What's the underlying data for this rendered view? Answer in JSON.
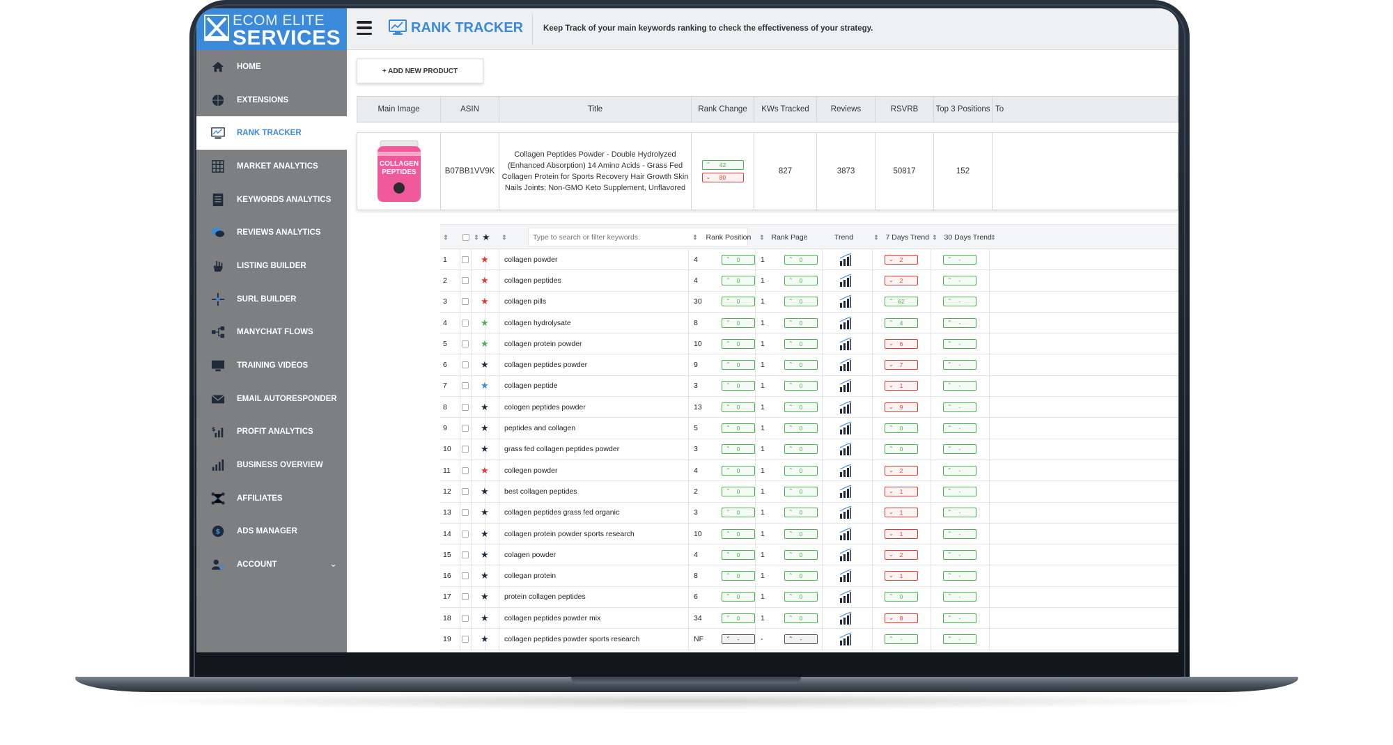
{
  "brand": {
    "line1": "ECOM ELITE",
    "line2": "SERVICES",
    "color": "#3b8ad9"
  },
  "sidebar": {
    "items": [
      {
        "label": "HOME",
        "icon": "home-icon",
        "active": false
      },
      {
        "label": "EXTENSIONS",
        "icon": "globe-icon",
        "active": false
      },
      {
        "label": "RANK TRACKER",
        "icon": "monitor-chart-icon",
        "active": true
      },
      {
        "label": "MARKET ANALYTICS",
        "icon": "grid-icon",
        "active": false
      },
      {
        "label": "KEYWORDS ANALYTICS",
        "icon": "checklist-icon",
        "active": false
      },
      {
        "label": "REVIEWS ANALYTICS",
        "icon": "chat-bubbles-icon",
        "active": false
      },
      {
        "label": "LISTING BUILDER",
        "icon": "hand-icon",
        "active": false
      },
      {
        "label": "SURL BUILDER",
        "icon": "crosshair-icon",
        "active": false
      },
      {
        "label": "MANYCHAT FLOWS",
        "icon": "flow-icon",
        "active": false
      },
      {
        "label": "TRAINING VIDEOS",
        "icon": "monitor-icon",
        "active": false
      },
      {
        "label": "EMAIL AUTORESPONDER",
        "icon": "envelope-icon",
        "active": false
      },
      {
        "label": "PROFIT ANALYTICS",
        "icon": "dollar-bars-icon",
        "active": false
      },
      {
        "label": "BUSINESS OVERVIEW",
        "icon": "bar-chart-icon",
        "active": false
      },
      {
        "label": "AFFILIATES",
        "icon": "network-icon",
        "active": false
      },
      {
        "label": "ADS MANAGER",
        "icon": "dollar-coin-icon",
        "active": false
      },
      {
        "label": "ACCOUNT",
        "icon": "user-gear-icon",
        "active": false,
        "chevron": "chevron-down-icon"
      }
    ]
  },
  "header": {
    "title": "RANK TRACKER",
    "subtitle": "Keep Track of your main keywords ranking to check the effectiveness of your strategy."
  },
  "content": {
    "add_button": "+ ADD NEW PRODUCT",
    "product_columns": [
      "Main Image",
      "ASIN",
      "Title",
      "Rank Change",
      "KWs Tracked",
      "Reviews",
      "RSVRB",
      "Top 3 Positions",
      "To"
    ],
    "product": {
      "image_text_top": "COLLAGEN",
      "image_text_bottom": "PEPTIDES",
      "asin": "B07BB1VV9K",
      "title": "Collagen Peptides Powder - Double Hydrolyzed (Enhanced Absorption) 14 Amino Acids - Grass Fed Collagen Protein for Sports Recovery Hair Growth Skin Nails Joints; Non-GMO Keto Supplement, Unflavored",
      "rank_up": "42",
      "rank_down": "80",
      "kws_tracked": "827",
      "reviews": "3873",
      "rsvrb": "50817",
      "top3": "152"
    },
    "keyword_columns": {
      "search_placeholder": "Type to search or filter keywords.",
      "rank_position": "Rank Position",
      "rank_page": "Rank Page",
      "trend": "Trend",
      "days7": "7 Days Trend",
      "days30": "30 Days Trend"
    },
    "keywords": [
      {
        "n": "1",
        "star": "red",
        "kw": "collagen powder",
        "pos": "4",
        "pos_ch": "0",
        "pos_st": "g",
        "page": "1",
        "page_ch": "0",
        "page_st": "g",
        "d7": "2",
        "d7_st": "r",
        "d30": "-",
        "d30_st": "g"
      },
      {
        "n": "2",
        "star": "red",
        "kw": "collagen peptides",
        "pos": "4",
        "pos_ch": "0",
        "pos_st": "g",
        "page": "1",
        "page_ch": "0",
        "page_st": "g",
        "d7": "2",
        "d7_st": "r",
        "d30": "-",
        "d30_st": "g"
      },
      {
        "n": "3",
        "star": "red",
        "kw": "collagen pills",
        "pos": "30",
        "pos_ch": "0",
        "pos_st": "g",
        "page": "1",
        "page_ch": "0",
        "page_st": "g",
        "d7": "62",
        "d7_st": "g",
        "d30": "-",
        "d30_st": "g"
      },
      {
        "n": "4",
        "star": "green",
        "kw": "collagen hydrolysate",
        "pos": "8",
        "pos_ch": "0",
        "pos_st": "g",
        "page": "1",
        "page_ch": "0",
        "page_st": "g",
        "d7": "4",
        "d7_st": "g",
        "d30": "-",
        "d30_st": "g"
      },
      {
        "n": "5",
        "star": "green",
        "kw": "collagen protein powder",
        "pos": "10",
        "pos_ch": "0",
        "pos_st": "g",
        "page": "1",
        "page_ch": "0",
        "page_st": "g",
        "d7": "6",
        "d7_st": "r",
        "d30": "-",
        "d30_st": "g"
      },
      {
        "n": "6",
        "star": "dark",
        "kw": "collagen peptides powder",
        "pos": "9",
        "pos_ch": "0",
        "pos_st": "g",
        "page": "1",
        "page_ch": "0",
        "page_st": "g",
        "d7": "7",
        "d7_st": "r",
        "d30": "-",
        "d30_st": "g"
      },
      {
        "n": "7",
        "star": "blue",
        "kw": "collagen peptide",
        "pos": "3",
        "pos_ch": "0",
        "pos_st": "g",
        "page": "1",
        "page_ch": "0",
        "page_st": "g",
        "d7": "1",
        "d7_st": "r",
        "d30": "-",
        "d30_st": "g"
      },
      {
        "n": "8",
        "star": "dark",
        "kw": "cologen peptides powder",
        "pos": "13",
        "pos_ch": "0",
        "pos_st": "g",
        "page": "1",
        "page_ch": "0",
        "page_st": "g",
        "d7": "9",
        "d7_st": "r",
        "d30": "-",
        "d30_st": "g"
      },
      {
        "n": "9",
        "star": "dark",
        "kw": "peptides and collagen",
        "pos": "5",
        "pos_ch": "0",
        "pos_st": "g",
        "page": "1",
        "page_ch": "0",
        "page_st": "g",
        "d7": "0",
        "d7_st": "g",
        "d30": "-",
        "d30_st": "g"
      },
      {
        "n": "10",
        "star": "dark",
        "kw": "grass fed collagen peptides powder",
        "pos": "3",
        "pos_ch": "0",
        "pos_st": "g",
        "page": "1",
        "page_ch": "0",
        "page_st": "g",
        "d7": "0",
        "d7_st": "g",
        "d30": "-",
        "d30_st": "g"
      },
      {
        "n": "11",
        "star": "red",
        "kw": "collegen powder",
        "pos": "4",
        "pos_ch": "0",
        "pos_st": "g",
        "page": "1",
        "page_ch": "0",
        "page_st": "g",
        "d7": "2",
        "d7_st": "r",
        "d30": "-",
        "d30_st": "g"
      },
      {
        "n": "12",
        "star": "dark",
        "kw": "best collagen peptides",
        "pos": "2",
        "pos_ch": "0",
        "pos_st": "g",
        "page": "1",
        "page_ch": "0",
        "page_st": "g",
        "d7": "1",
        "d7_st": "r",
        "d30": "-",
        "d30_st": "g"
      },
      {
        "n": "13",
        "star": "dark",
        "kw": "collagen peptides grass fed organic",
        "pos": "3",
        "pos_ch": "0",
        "pos_st": "g",
        "page": "1",
        "page_ch": "0",
        "page_st": "g",
        "d7": "1",
        "d7_st": "r",
        "d30": "-",
        "d30_st": "g"
      },
      {
        "n": "14",
        "star": "dark",
        "kw": "collagen protein powder sports research",
        "pos": "10",
        "pos_ch": "0",
        "pos_st": "g",
        "page": "1",
        "page_ch": "0",
        "page_st": "g",
        "d7": "1",
        "d7_st": "r",
        "d30": "-",
        "d30_st": "g"
      },
      {
        "n": "15",
        "star": "dark",
        "kw": "colagen powder",
        "pos": "4",
        "pos_ch": "0",
        "pos_st": "g",
        "page": "1",
        "page_ch": "0",
        "page_st": "g",
        "d7": "2",
        "d7_st": "r",
        "d30": "-",
        "d30_st": "g"
      },
      {
        "n": "16",
        "star": "dark",
        "kw": "collegan protein",
        "pos": "8",
        "pos_ch": "0",
        "pos_st": "g",
        "page": "1",
        "page_ch": "0",
        "page_st": "g",
        "d7": "1",
        "d7_st": "r",
        "d30": "-",
        "d30_st": "g"
      },
      {
        "n": "17",
        "star": "dark",
        "kw": "protein collagen peptides",
        "pos": "6",
        "pos_ch": "0",
        "pos_st": "g",
        "page": "1",
        "page_ch": "0",
        "page_st": "g",
        "d7": "0",
        "d7_st": "g",
        "d30": "-",
        "d30_st": "g"
      },
      {
        "n": "18",
        "star": "dark",
        "kw": "collagen peptides powder mix",
        "pos": "34",
        "pos_ch": "0",
        "pos_st": "g",
        "page": "1",
        "page_ch": "0",
        "page_st": "g",
        "d7": "8",
        "d7_st": "r",
        "d30": "-",
        "d30_st": "g"
      },
      {
        "n": "19",
        "star": "dark",
        "kw": "collagen peptides powder sports research",
        "pos": "NF",
        "pos_ch": "-",
        "pos_st": "n",
        "page": "-",
        "page_ch": "-",
        "page_st": "n",
        "d7": "-",
        "d7_st": "g",
        "d30": "-",
        "d30_st": "g"
      }
    ]
  },
  "colors": {
    "accent": "#3b8ad9",
    "sidebar": "#7d7f80",
    "up": "#4caf50",
    "down": "#e53935",
    "star_red": "#e53935",
    "star_green": "#4caf50",
    "star_blue": "#3b8ad9",
    "star_dark": "#1f2a3a"
  }
}
